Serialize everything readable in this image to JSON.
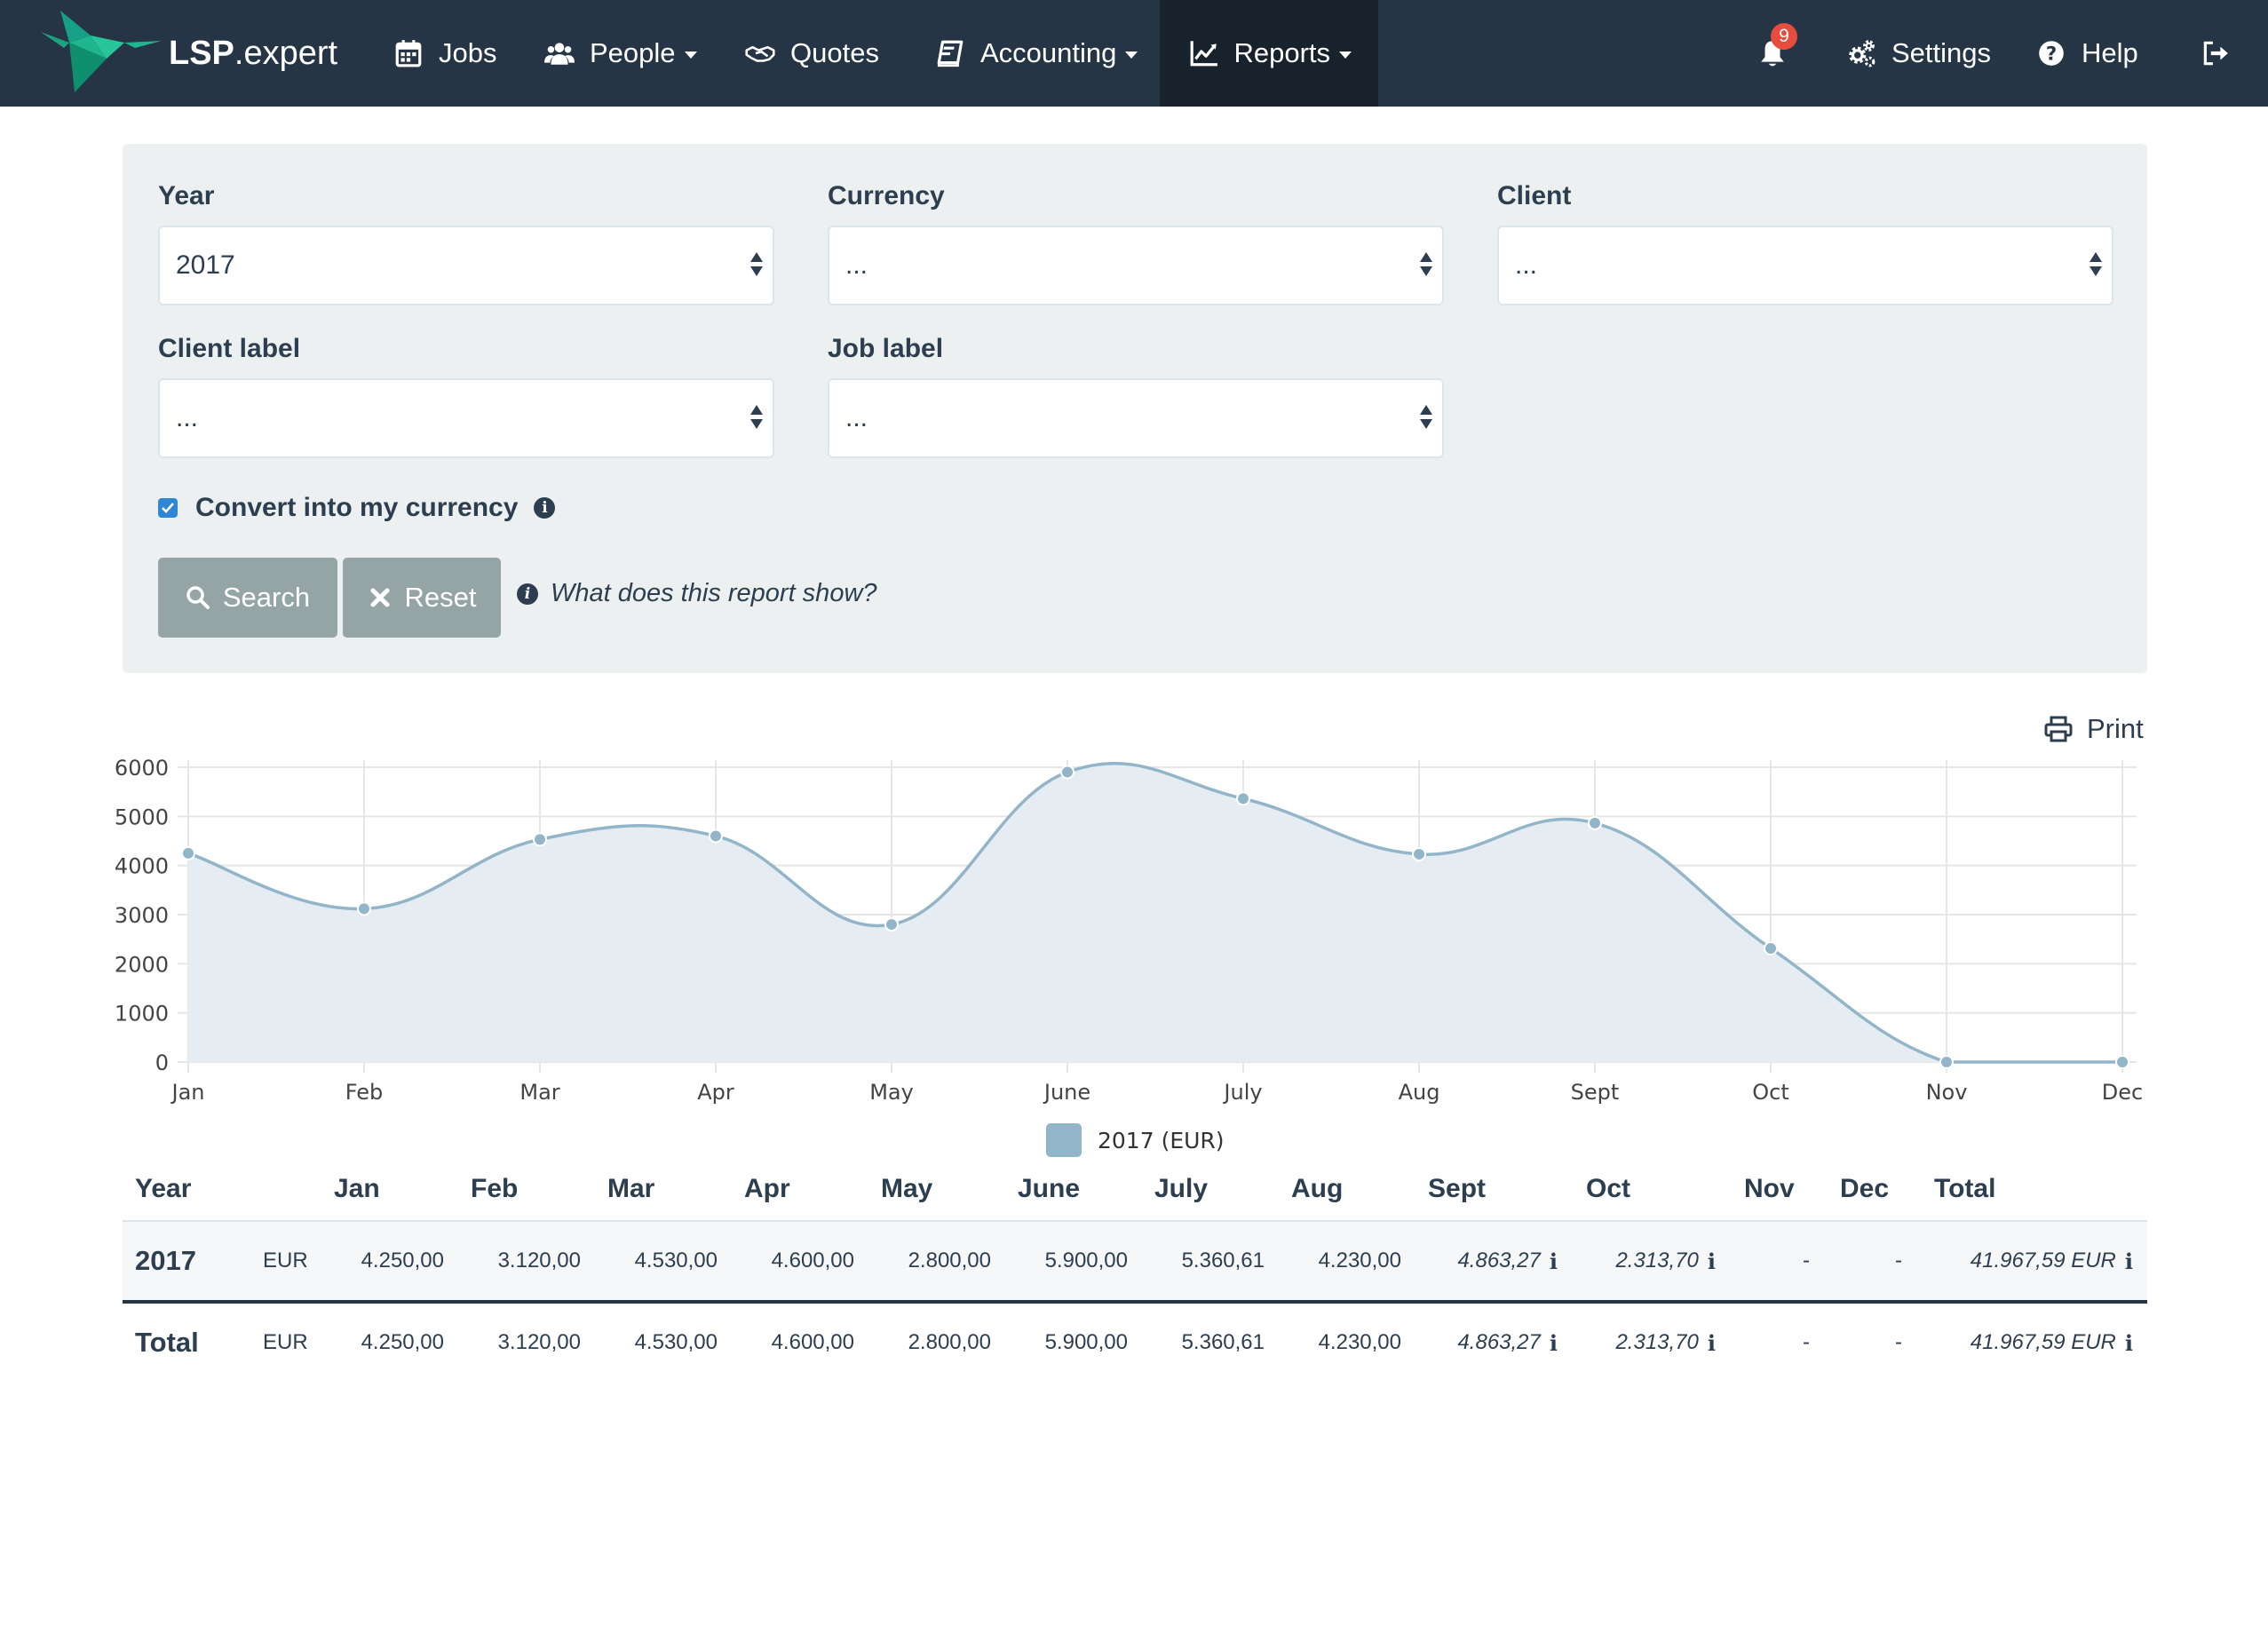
{
  "navbar": {
    "brand": {
      "bold": "LSP",
      "light": ".expert"
    },
    "items": [
      {
        "label": "Jobs",
        "icon": "calendar-icon"
      },
      {
        "label": "People",
        "icon": "users-icon",
        "dropdown": true
      },
      {
        "label": "Quotes",
        "icon": "handshake-icon"
      },
      {
        "label": "Accounting",
        "icon": "book-icon",
        "dropdown": true
      },
      {
        "label": "Reports",
        "icon": "line-chart-icon",
        "dropdown": true,
        "active": true
      }
    ],
    "notifications_count": "9",
    "settings_label": "Settings",
    "help_label": "Help",
    "colors": {
      "bg": "#263545",
      "active_bg": "#17222d",
      "brand_green": "#1fb58f",
      "badge": "#e74c3c"
    }
  },
  "filters": {
    "year": {
      "label": "Year",
      "value": "2017"
    },
    "currency": {
      "label": "Currency",
      "value": "..."
    },
    "client": {
      "label": "Client",
      "value": "..."
    },
    "client_label": {
      "label": "Client label",
      "value": "..."
    },
    "job_label": {
      "label": "Job label",
      "value": "..."
    },
    "convert": {
      "label": "Convert into my currency",
      "checked": true
    },
    "search_label": "Search",
    "reset_label": "Reset",
    "help_text": "What does this report show?"
  },
  "print_label": "Print",
  "chart_data": {
    "type": "area",
    "categories": [
      "Jan",
      "Feb",
      "Mar",
      "Apr",
      "May",
      "June",
      "July",
      "Aug",
      "Sept",
      "Oct",
      "Nov",
      "Dec"
    ],
    "series": [
      {
        "name": "2017 (EUR)",
        "values": [
          4250,
          3120,
          4530,
          4600,
          2800,
          5900,
          5360.61,
          4230,
          4863.27,
          2313.7,
          0,
          0
        ],
        "color": "#92b5ca",
        "fill": "#e5ecf2"
      }
    ],
    "yticks": [
      "0",
      "1000",
      "2000",
      "3000",
      "4000",
      "5000",
      "6000"
    ],
    "ylim": [
      0,
      6000
    ],
    "grid": true,
    "legend": "bottom"
  },
  "table": {
    "headers": [
      "Year",
      "Jan",
      "Feb",
      "Mar",
      "Apr",
      "May",
      "June",
      "July",
      "Aug",
      "Sept",
      "Oct",
      "Nov",
      "Dec",
      "Total"
    ],
    "rows": [
      {
        "year": "2017",
        "currency": "EUR",
        "values": [
          "4.250,00",
          "3.120,00",
          "4.530,00",
          "4.600,00",
          "2.800,00",
          "5.900,00",
          "5.360,61",
          "4.230,00",
          "4.863,27",
          "2.313,70",
          "-",
          "-"
        ],
        "total": "41.967,59 EUR"
      },
      {
        "year": "Total",
        "currency": "EUR",
        "values": [
          "4.250,00",
          "3.120,00",
          "4.530,00",
          "4.600,00",
          "2.800,00",
          "5.900,00",
          "5.360,61",
          "4.230,00",
          "4.863,27",
          "2.313,70",
          "-",
          "-"
        ],
        "total": "41.967,59 EUR"
      }
    ]
  }
}
